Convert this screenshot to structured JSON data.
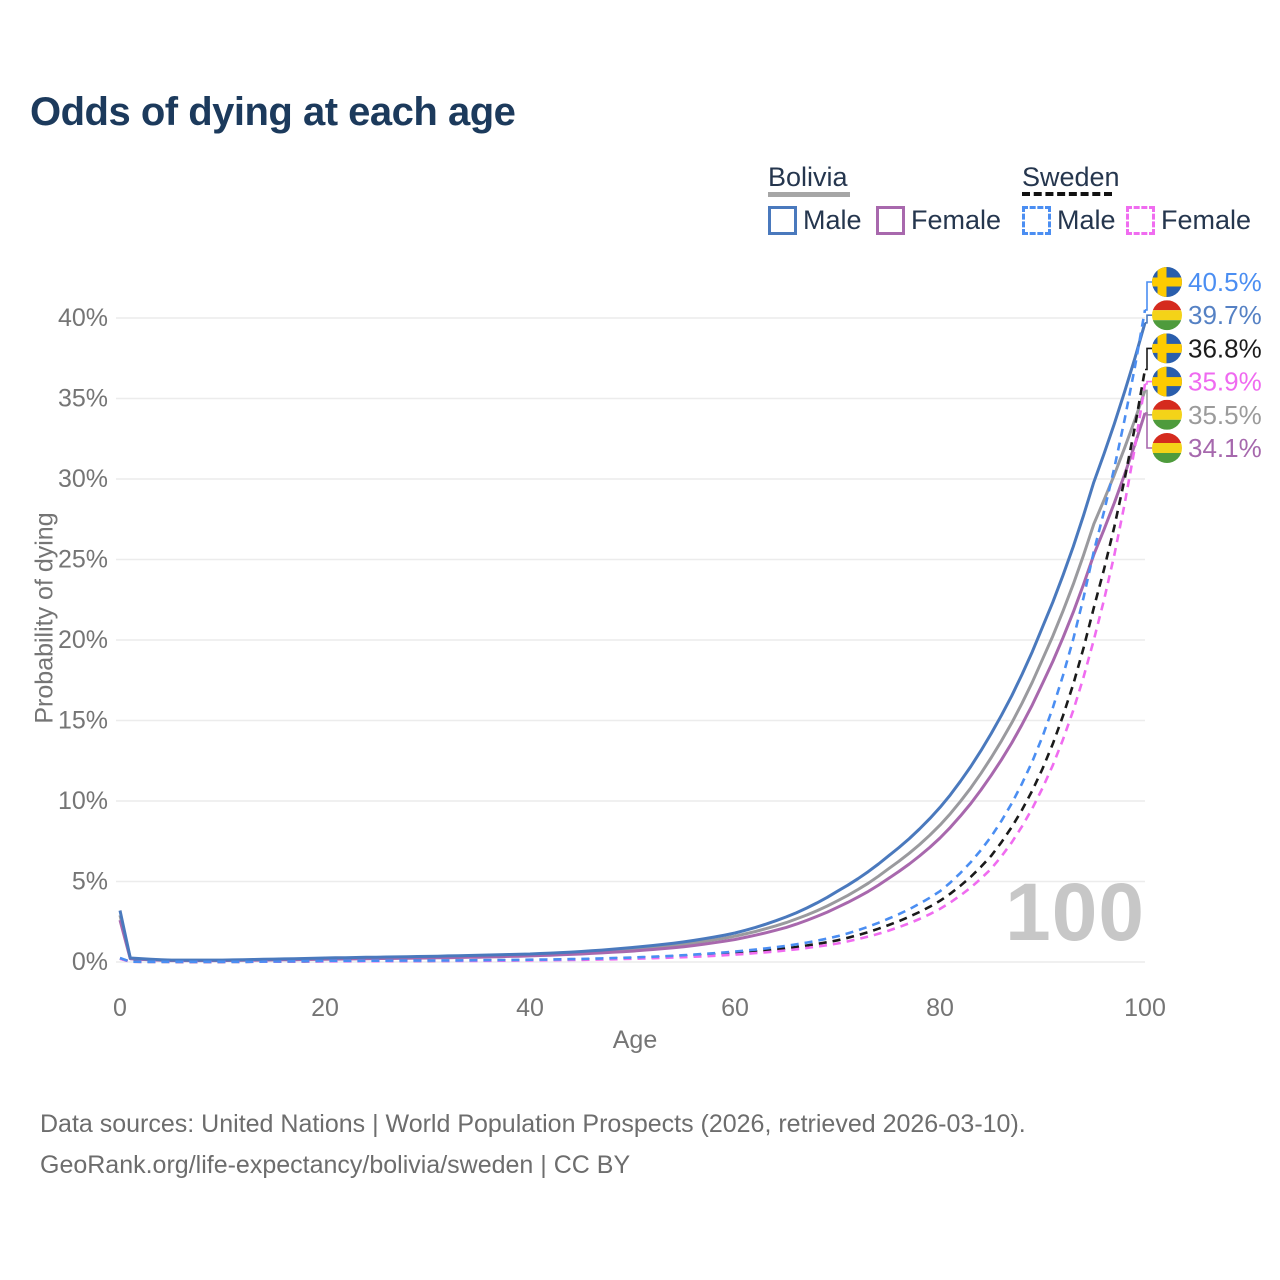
{
  "header": {
    "title": "Odds of dying at each age"
  },
  "legend": {
    "bolivia": {
      "label": "Bolivia",
      "male": "Male",
      "female": "Female"
    },
    "sweden": {
      "label": "Sweden",
      "male": "Male",
      "female": "Female"
    }
  },
  "watermark": "100",
  "footer": {
    "line1": "Data sources: United Nations | World Population Prospects (2026, retrieved 2026-03-10).",
    "line2": "GeoRank.org/life-expectancy/bolivia/sweden | CC BY"
  },
  "colors": {
    "bolivia_male": "#4a79bd",
    "bolivia_female": "#a868ad",
    "bolivia_total": "#9a9a9e",
    "sweden_male": "#4b8ef2",
    "sweden_female": "#f06cf0",
    "sweden_total": "#1a1a1a",
    "grid": "#ececec",
    "tick_text": "#757575"
  },
  "chart_data": {
    "type": "line",
    "title": "Odds of dying at each age",
    "xlabel": "Age",
    "ylabel": "Probability of dying",
    "xlim": [
      0,
      100
    ],
    "ylim": [
      0,
      42
    ],
    "grid": "horizontal-only",
    "legend_position": "top-right",
    "x_ticks": [
      0,
      20,
      40,
      60,
      80,
      100
    ],
    "y_ticks": [
      0,
      5,
      10,
      15,
      20,
      25,
      30,
      35,
      40
    ],
    "y_tick_suffix": "%",
    "ages": [
      0,
      1,
      5,
      10,
      15,
      20,
      25,
      30,
      35,
      40,
      45,
      50,
      55,
      60,
      65,
      70,
      75,
      80,
      85,
      90,
      95,
      100
    ],
    "series": [
      {
        "name": "Bolivia Total",
        "country": "bolivia",
        "sex": "total",
        "style": "solid",
        "color": "#9a9a9e",
        "label_color": "#9b9b9b",
        "flag": "bolivia",
        "end_label": "35.5%",
        "values": [
          2.9,
          0.22,
          0.1,
          0.1,
          0.15,
          0.2,
          0.25,
          0.3,
          0.36,
          0.44,
          0.57,
          0.78,
          1.1,
          1.6,
          2.45,
          3.8,
          5.8,
          8.5,
          12.7,
          18.8,
          27.2,
          35.5
        ]
      },
      {
        "name": "Bolivia Female",
        "country": "bolivia",
        "sex": "female",
        "style": "solid",
        "color": "#a868ad",
        "label_color": "#a668ad",
        "flag": "bolivia",
        "end_label": "34.1%",
        "values": [
          2.6,
          0.2,
          0.09,
          0.09,
          0.13,
          0.17,
          0.21,
          0.25,
          0.3,
          0.38,
          0.5,
          0.68,
          0.95,
          1.4,
          2.15,
          3.4,
          5.2,
          7.7,
          11.6,
          17.3,
          25.3,
          34.1
        ]
      },
      {
        "name": "Bolivia Male",
        "country": "bolivia",
        "sex": "male",
        "style": "solid",
        "color": "#4a79bd",
        "label_color": "#5581c4",
        "flag": "bolivia",
        "end_label": "39.7%",
        "values": [
          3.2,
          0.25,
          0.12,
          0.12,
          0.18,
          0.25,
          0.3,
          0.35,
          0.42,
          0.5,
          0.65,
          0.9,
          1.25,
          1.8,
          2.8,
          4.4,
          6.6,
          9.6,
          14.2,
          20.8,
          29.8,
          39.7
        ]
      },
      {
        "name": "Sweden Total",
        "country": "sweden",
        "sex": "total",
        "style": "dashed",
        "color": "#1a1a1a",
        "label_color": "#1c1c1c",
        "flag": "sweden",
        "end_label": "36.8%",
        "values": [
          0.22,
          0.018,
          0.009,
          0.009,
          0.025,
          0.05,
          0.06,
          0.07,
          0.09,
          0.12,
          0.16,
          0.24,
          0.36,
          0.55,
          0.85,
          1.35,
          2.3,
          3.8,
          6.6,
          12.0,
          22.0,
          36.8
        ]
      },
      {
        "name": "Sweden Female",
        "country": "sweden",
        "sex": "female",
        "style": "dashed",
        "color": "#f06cf0",
        "label_color": "#ef6af0",
        "flag": "sweden",
        "end_label": "35.9%",
        "values": [
          0.2,
          0.015,
          0.008,
          0.008,
          0.02,
          0.04,
          0.05,
          0.06,
          0.07,
          0.1,
          0.13,
          0.2,
          0.3,
          0.46,
          0.72,
          1.15,
          1.95,
          3.3,
          5.8,
          10.8,
          20.0,
          35.9
        ]
      },
      {
        "name": "Sweden Male",
        "country": "sweden",
        "sex": "male",
        "style": "dashed",
        "color": "#4b8ef2",
        "label_color": "#4b8ef2",
        "flag": "sweden",
        "end_label": "40.5%",
        "values": [
          0.25,
          0.02,
          0.01,
          0.01,
          0.03,
          0.07,
          0.08,
          0.09,
          0.11,
          0.14,
          0.19,
          0.28,
          0.42,
          0.65,
          1.0,
          1.6,
          2.7,
          4.4,
          7.8,
          14.0,
          25.5,
          40.5
        ]
      }
    ]
  }
}
